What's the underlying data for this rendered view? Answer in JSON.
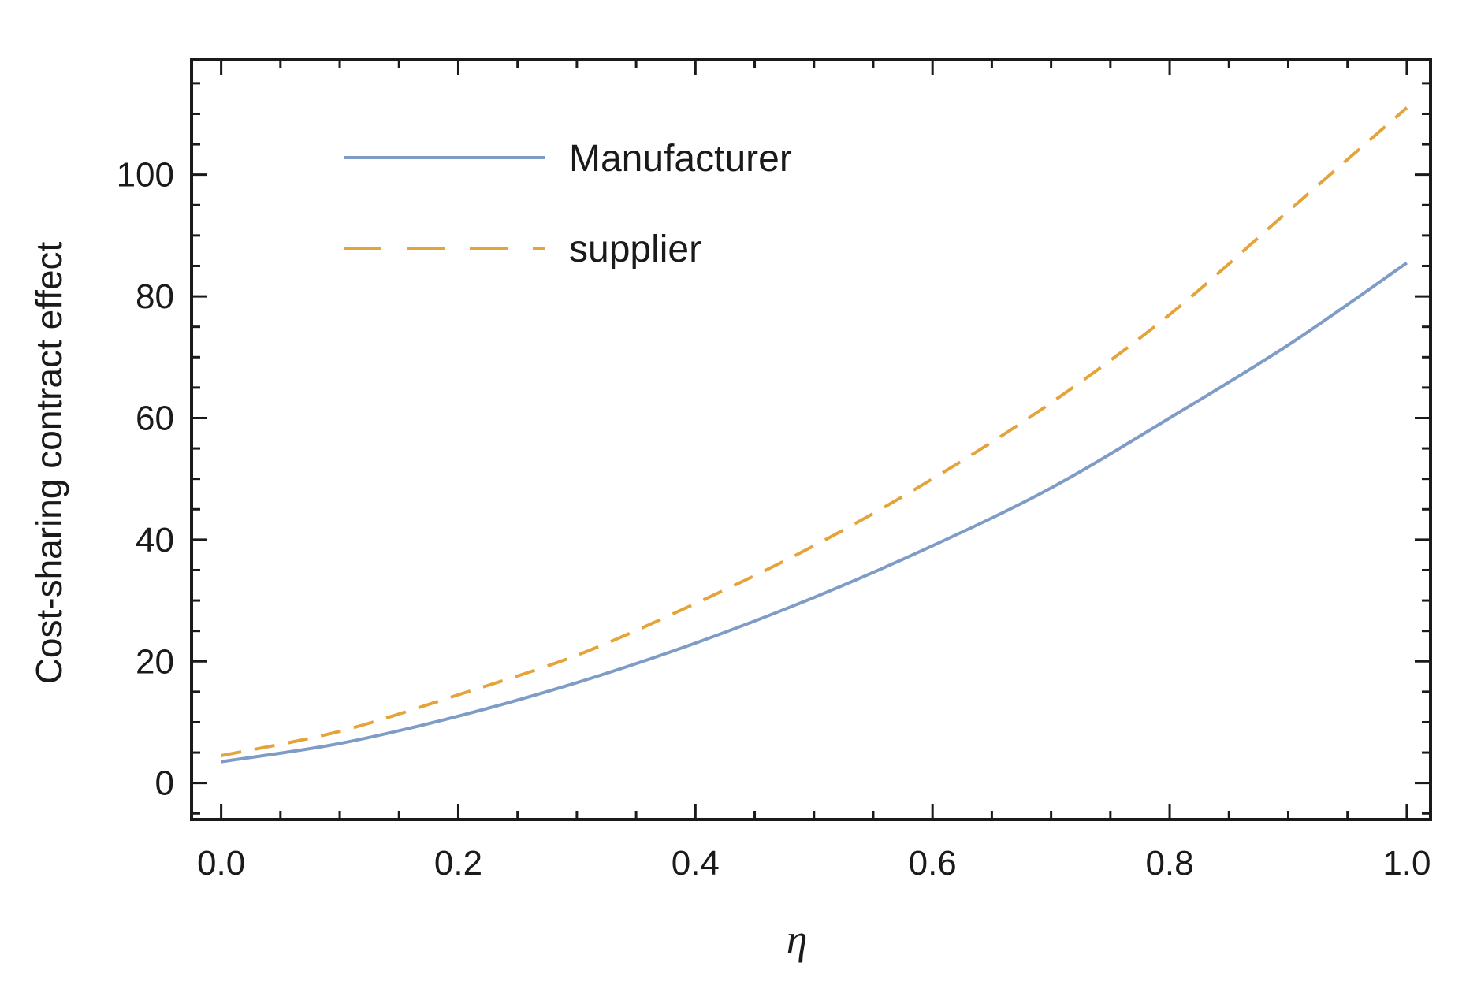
{
  "chart_data": {
    "type": "line",
    "title": "",
    "xlabel": "η",
    "ylabel": "Cost-sharing contract effect",
    "xlim": [
      -0.025,
      1.02
    ],
    "ylim": [
      -6,
      119
    ],
    "xticks": [
      0.0,
      0.2,
      0.4,
      0.6,
      0.8,
      1.0
    ],
    "xtick_labels": [
      "0.0",
      "0.2",
      "0.4",
      "0.6",
      "0.8",
      "1.0"
    ],
    "yticks": [
      0,
      20,
      40,
      60,
      80,
      100
    ],
    "ytick_labels": [
      "0",
      "20",
      "40",
      "60",
      "80",
      "100"
    ],
    "grid": false,
    "legend_position": "top-left",
    "series": [
      {
        "name": "Manufacturer",
        "style": "solid",
        "color": "#7f9cc7",
        "x": [
          0.0,
          0.1,
          0.2,
          0.3,
          0.4,
          0.5,
          0.6,
          0.7,
          0.8,
          0.9,
          1.0
        ],
        "y": [
          3.5,
          6.5,
          11,
          16.5,
          23,
          30.5,
          39,
          48.5,
          60,
          72,
          85.5
        ]
      },
      {
        "name": "supplier",
        "style": "dashed",
        "color": "#e5a43a",
        "x": [
          0.0,
          0.1,
          0.2,
          0.3,
          0.4,
          0.5,
          0.6,
          0.7,
          0.8,
          0.9,
          1.0
        ],
        "y": [
          4.5,
          8.5,
          14.5,
          21,
          29.5,
          39,
          50,
          62.5,
          77,
          94,
          111
        ]
      }
    ]
  }
}
